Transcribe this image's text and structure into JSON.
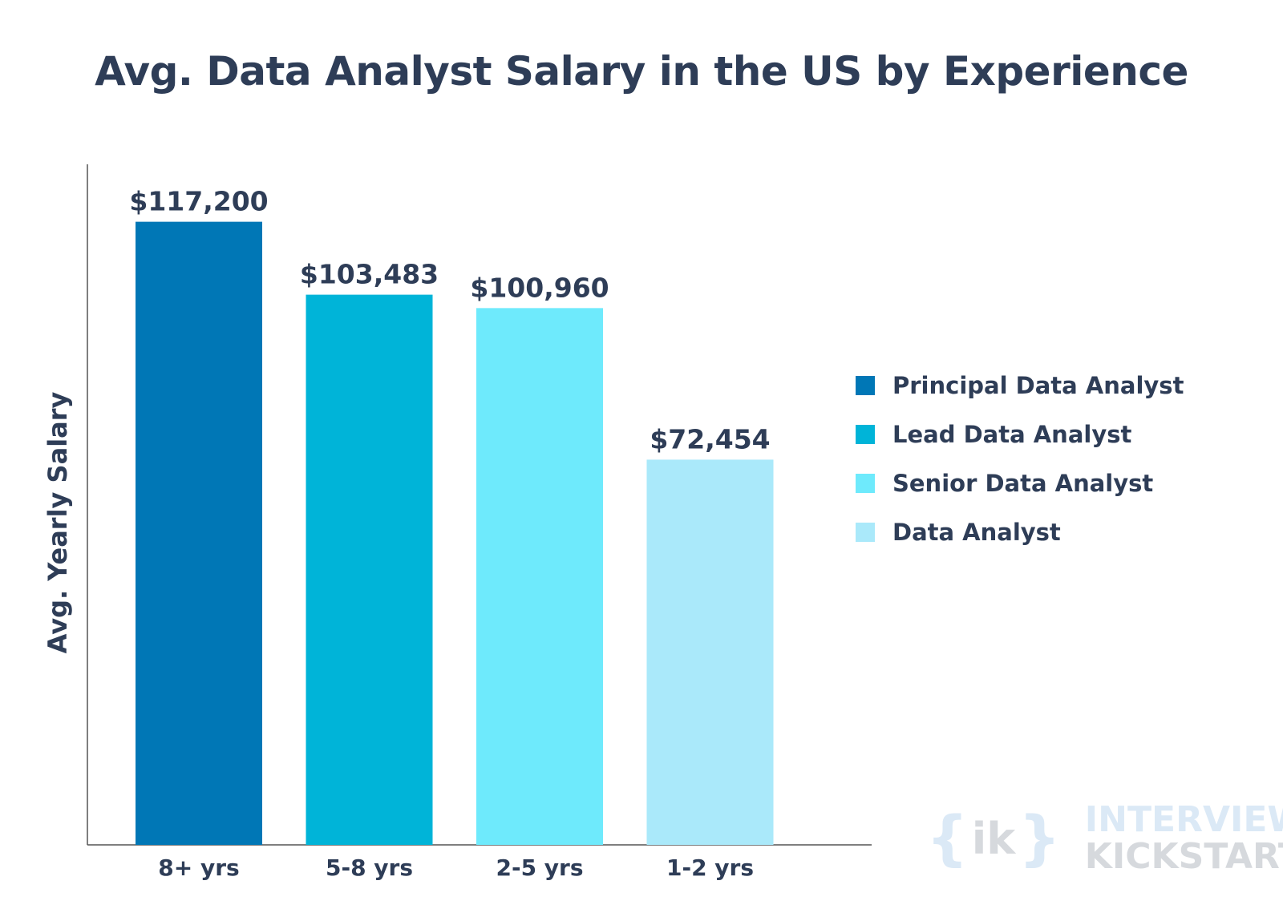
{
  "chart_data": {
    "type": "bar",
    "title": "Avg. Data Analyst Salary in the US by Experience",
    "xlabel": "",
    "ylabel": "Avg. Yearly Salary",
    "categories": [
      "8+ yrs",
      "5-8 yrs",
      "2-5 yrs",
      "1-2 yrs"
    ],
    "values": [
      117200,
      103483,
      100960,
      72454
    ],
    "data_labels": [
      "$117,200",
      "$103,483",
      "$100,960",
      "$72,454"
    ],
    "colors": [
      "#0077b6",
      "#00b4d8",
      "#6eeafc",
      "#aae9fa"
    ],
    "legend": [
      "Principal Data Analyst",
      "Lead Data Analyst",
      "Senior Data Analyst",
      "Data Analyst"
    ],
    "legend_position": "right",
    "ylim": [
      0,
      128000
    ],
    "grid": false,
    "y_ticks_shown": false
  },
  "watermark": {
    "brace_open": "{",
    "mark": "ik",
    "brace_close": "}",
    "line1": "INTERVIEW",
    "line2": "KICKSTART"
  }
}
